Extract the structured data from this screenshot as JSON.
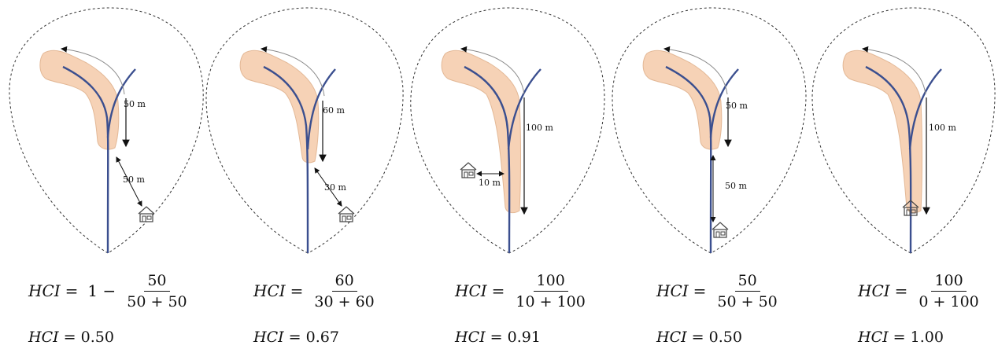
{
  "symbol": "HCI",
  "panels": [
    {
      "upstream_label": "50 m",
      "house_label": "50 m",
      "formula": {
        "lead": "1 −",
        "numerator": "50",
        "denominator": "50 + 50"
      },
      "result": "0.50"
    },
    {
      "upstream_label": "60 m",
      "house_label": "30 m",
      "formula": {
        "lead": "",
        "numerator": "60",
        "denominator": "30 + 60"
      },
      "result": "0.67"
    },
    {
      "upstream_label": "100 m",
      "house_label": "10 m",
      "formula": {
        "lead": "",
        "numerator": "100",
        "denominator": "10 + 100"
      },
      "result": "0.91"
    },
    {
      "upstream_label": "50 m",
      "house_label": "50 m",
      "formula": {
        "lead": "",
        "numerator": "50",
        "denominator": "50 + 50"
      },
      "result": "0.50"
    },
    {
      "upstream_label": "100 m",
      "house_label": "",
      "formula": {
        "lead": "",
        "numerator": "100",
        "denominator": "0 + 100"
      },
      "result": "1.00"
    }
  ],
  "colors": {
    "stream": "#3b4f8f",
    "landslide_fill": "#f6d2b6",
    "landslide_stroke": "#e3b896",
    "outline": "#333333",
    "arrow": "#111111",
    "flow_arrow": "#8a8a8a"
  }
}
